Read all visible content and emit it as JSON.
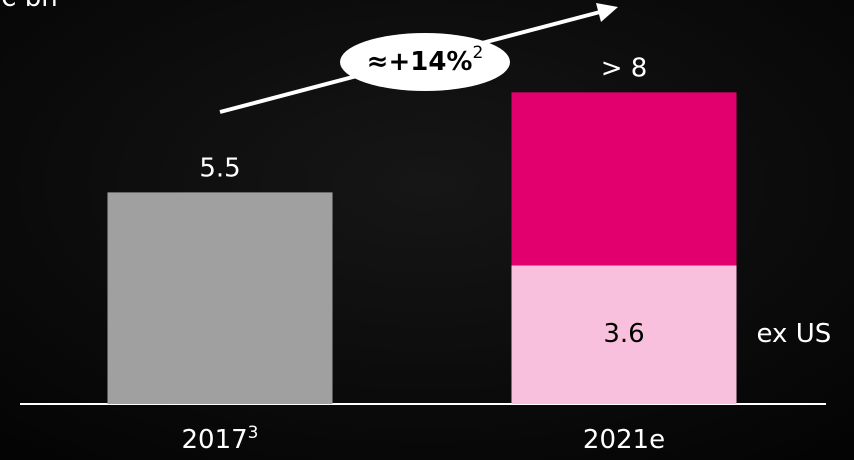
{
  "chart_data": {
    "type": "stacked-bar",
    "unit_label": "€ bn",
    "categories": [
      "2017",
      "2021e"
    ],
    "category_footnotes": [
      "3",
      null
    ],
    "series": [
      {
        "color": "#a0a0a0",
        "values": [
          5.5,
          null
        ],
        "value_labels": [
          "5.5",
          null
        ]
      },
      {
        "name": "ex US",
        "color": "#f9c0de",
        "values": [
          null,
          3.6
        ],
        "value_labels": [
          null,
          "3.6"
        ]
      },
      {
        "color": "#e2006f",
        "values": [
          null,
          4.5
        ],
        "value_labels": [
          null,
          null
        ]
      }
    ],
    "total_labels": [
      null,
      "> 8"
    ],
    "annotation": {
      "text": "≈+14%",
      "footnote": "2"
    },
    "ylim": [
      0,
      10.5
    ]
  }
}
